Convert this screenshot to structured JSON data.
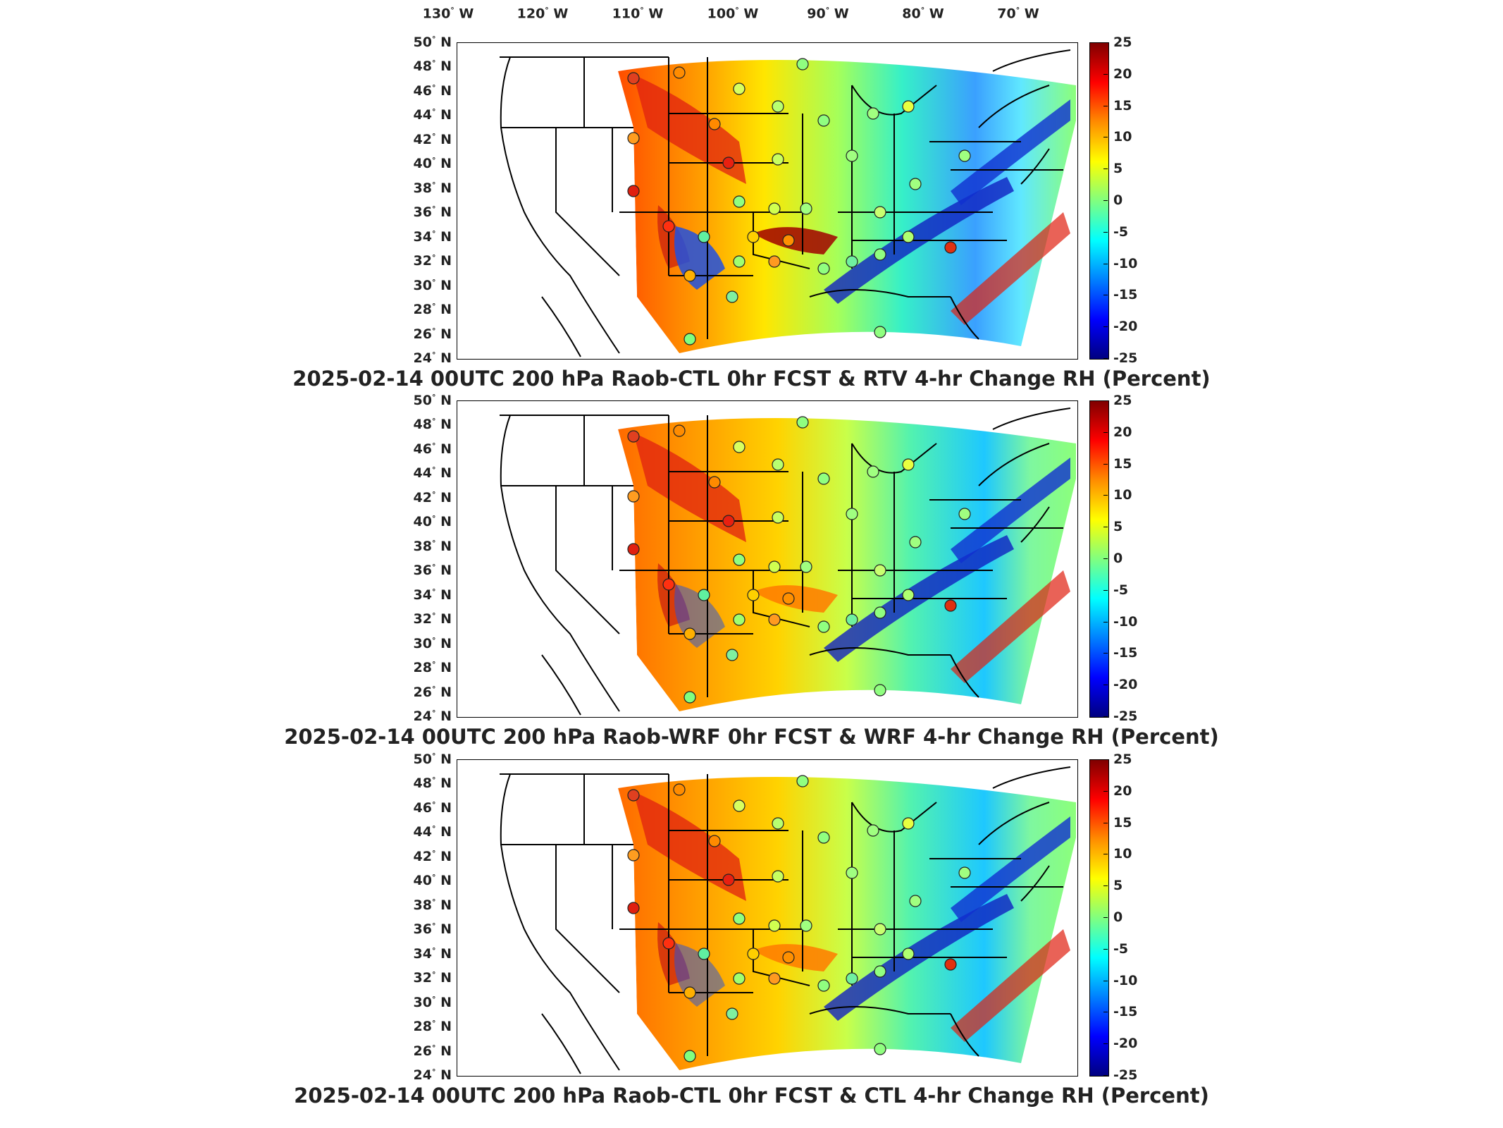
{
  "longitude_labels": [
    "130",
    "120",
    "110",
    "100",
    "90",
    "80",
    "70"
  ],
  "longitude_suffix": "W",
  "latitude_labels": [
    "50",
    "48",
    "46",
    "44",
    "42",
    "40",
    "38",
    "36",
    "34",
    "32",
    "30",
    "28",
    "26",
    "24"
  ],
  "latitude_suffix": "N",
  "degree_symbol": "°",
  "colorbar_ticks": [
    "25",
    "20",
    "15",
    "10",
    "5",
    "0",
    "-5",
    "-10",
    "-15",
    "-20",
    "-25"
  ],
  "colorbar_colors": [
    "#800000",
    "#ff0000",
    "#ff8c00",
    "#ffff00",
    "#80ff80",
    "#00ffff",
    "#0080ff",
    "#0000ff",
    "#000080"
  ],
  "panels": [
    {
      "title": "2025-02-14 00UTC 200 hPa Raob-CTL 0hr FCST & RTV 4-hr Change RH (Percent)"
    },
    {
      "title": "2025-02-14 00UTC 200 hPa Raob-WRF 0hr FCST & WRF 4-hr Change RH (Percent)"
    },
    {
      "title": "2025-02-14 00UTC 200 hPa Raob-CTL 0hr FCST & CTL 4-hr Change RH (Percent)"
    }
  ]
}
